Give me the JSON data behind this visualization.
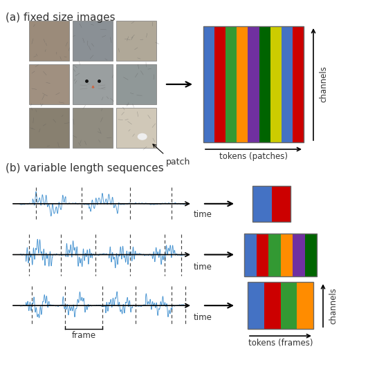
{
  "title_a": "(a) fixed size images",
  "title_b": "(b) variable length sequences",
  "patch_label": "patch",
  "frame_label": "frame",
  "tokens_patches_label": "tokens (patches)",
  "tokens_frames_label": "tokens (frames)",
  "channels_label": "channels",
  "time_label": "time",
  "patch_colors_wide": [
    "#4472C4",
    "#CC0000",
    "#339933",
    "#FF8C00",
    "#7030A0",
    "#006400",
    "#CCCC00",
    "#4472C4",
    "#CC0000"
  ],
  "seq1_colors": [
    "#4472C4",
    "#CC0000"
  ],
  "seq2_colors": [
    "#4472C4",
    "#CC0000",
    "#339933",
    "#FF8C00",
    "#7030A0",
    "#006400"
  ],
  "seq3_colors": [
    "#4472C4",
    "#CC0000",
    "#339933",
    "#FF8C00"
  ],
  "bg_color": "#FFFFFF",
  "text_color": "#333333",
  "wave_color": "#3388CC",
  "dashed_color": "#444444",
  "cat_colors": [
    [
      "#9B8B7A",
      "#8A9095",
      "#B0A898"
    ],
    [
      "#A09080",
      "#9A9FA0",
      "#909898"
    ],
    [
      "#888070",
      "#908C80",
      "#D0C8B8"
    ]
  ]
}
